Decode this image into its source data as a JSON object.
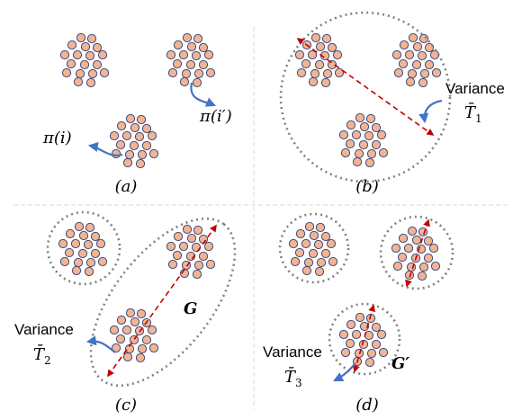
{
  "panels": {
    "a": {
      "caption": "(a)",
      "label_pi_i": "π(i)",
      "label_pi_i_prime": "π(i′)"
    },
    "b": {
      "caption": "(b)",
      "variance_word": "Variance",
      "variance_symbol": "T̄",
      "variance_sub": "1"
    },
    "c": {
      "caption": "(c)",
      "variance_word": "Variance",
      "variance_symbol": "T̄",
      "variance_sub": "2",
      "group_label": "G"
    },
    "d": {
      "caption": "(d)",
      "variance_word": "Variance",
      "variance_symbol": "T̄",
      "variance_sub": "3",
      "group_label": "G′"
    }
  },
  "colors": {
    "dot_fill": "#F2B594",
    "dot_stroke": "#3F4A7A",
    "circle_stroke": "#808080",
    "arrow_red": "#C00000",
    "arrow_blue": "#4472C4",
    "divider": "#D9D9D9"
  }
}
